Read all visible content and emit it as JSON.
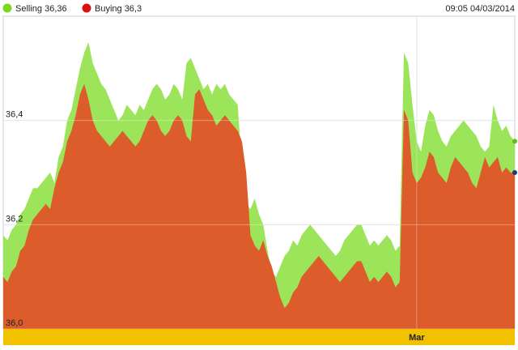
{
  "header": {
    "legend": [
      {
        "name": "Selling",
        "value": "36,36",
        "label": "Selling 36,36",
        "color": "#7bd81e",
        "marker": "dot"
      },
      {
        "name": "Buying",
        "value": "36,3",
        "label": "Buying 36,3",
        "color": "#dd0f0f",
        "marker": "dot"
      }
    ],
    "timestamp": "09:05 04/03/2014"
  },
  "chart_data": {
    "type": "area",
    "title": "",
    "xlabel": "",
    "ylabel": "",
    "ylim": [
      36.0,
      36.6
    ],
    "y_ticks": [
      {
        "value": 36.0,
        "label": "36,0"
      },
      {
        "value": 36.2,
        "label": "36,2"
      },
      {
        "value": 36.4,
        "label": "36,4"
      }
    ],
    "x_markers": [
      {
        "label": "Mar",
        "x_index": 97
      }
    ],
    "grid": true,
    "legend_position": "top-left",
    "series": [
      {
        "name": "Selling",
        "color": "#9ce55a",
        "values": [
          36.18,
          36.17,
          36.19,
          36.2,
          36.22,
          36.23,
          36.25,
          36.27,
          36.27,
          36.28,
          36.29,
          36.3,
          36.28,
          36.33,
          36.35,
          36.4,
          36.42,
          36.46,
          36.5,
          36.53,
          36.55,
          36.51,
          36.49,
          36.47,
          36.46,
          36.44,
          36.42,
          36.4,
          36.41,
          36.43,
          36.42,
          36.41,
          36.43,
          36.42,
          36.44,
          36.46,
          36.47,
          36.46,
          36.44,
          36.45,
          36.47,
          36.46,
          36.44,
          36.51,
          36.52,
          36.5,
          36.48,
          36.46,
          36.47,
          36.45,
          36.47,
          36.46,
          36.47,
          36.45,
          36.44,
          36.43,
          36.31,
          36.24,
          36.23,
          36.25,
          36.22,
          36.2,
          36.15,
          36.11,
          36.1,
          36.12,
          36.14,
          36.15,
          36.17,
          36.16,
          36.18,
          36.19,
          36.2,
          36.19,
          36.18,
          36.17,
          36.16,
          36.15,
          36.14,
          36.15,
          36.17,
          36.18,
          36.19,
          36.2,
          36.2,
          36.18,
          36.16,
          36.17,
          36.16,
          36.17,
          36.18,
          36.17,
          36.15,
          36.16,
          36.53,
          36.51,
          36.43,
          36.36,
          36.34,
          36.39,
          36.42,
          36.41,
          36.38,
          36.36,
          36.35,
          36.37,
          36.38,
          36.39,
          36.4,
          36.39,
          36.38,
          36.37,
          36.35,
          36.34,
          36.35,
          36.43,
          36.4,
          36.38,
          36.39,
          36.37,
          36.36
        ]
      },
      {
        "name": "Buying",
        "color": "#dd5c2b",
        "values": [
          36.1,
          36.09,
          36.11,
          36.12,
          36.15,
          36.16,
          36.19,
          36.21,
          36.22,
          36.23,
          36.24,
          36.23,
          36.27,
          36.3,
          36.32,
          36.36,
          36.38,
          36.41,
          36.45,
          36.47,
          36.44,
          36.4,
          36.38,
          36.37,
          36.36,
          36.35,
          36.36,
          36.37,
          36.38,
          36.37,
          36.36,
          36.35,
          36.36,
          36.38,
          36.4,
          36.41,
          36.4,
          36.38,
          36.37,
          36.38,
          36.4,
          36.41,
          36.4,
          36.37,
          36.36,
          36.45,
          36.46,
          36.44,
          36.42,
          36.41,
          36.39,
          36.4,
          36.41,
          36.4,
          36.39,
          36.38,
          36.36,
          36.3,
          36.18,
          36.16,
          36.15,
          36.17,
          36.14,
          36.12,
          36.09,
          36.06,
          36.04,
          36.05,
          36.07,
          36.08,
          36.1,
          36.11,
          36.12,
          36.13,
          36.14,
          36.13,
          36.12,
          36.11,
          36.1,
          36.09,
          36.1,
          36.11,
          36.12,
          36.13,
          36.13,
          36.11,
          36.09,
          36.1,
          36.09,
          36.1,
          36.11,
          36.1,
          36.08,
          36.09,
          36.42,
          36.4,
          36.3,
          36.28,
          36.29,
          36.31,
          36.34,
          36.33,
          36.3,
          36.29,
          36.28,
          36.31,
          36.33,
          36.32,
          36.31,
          36.3,
          36.28,
          36.27,
          36.3,
          36.33,
          36.31,
          36.32,
          36.33,
          36.3,
          36.31,
          36.3,
          36.3
        ]
      }
    ],
    "end_markers": [
      {
        "series": "Selling",
        "color": "#58c11a"
      },
      {
        "series": "Buying",
        "color": "#1c3d78"
      }
    ]
  }
}
